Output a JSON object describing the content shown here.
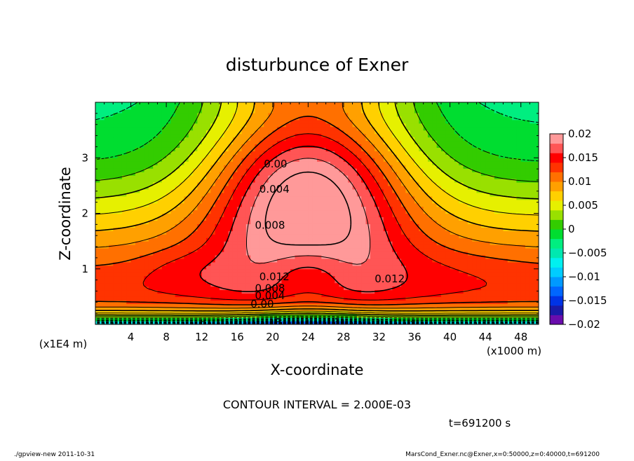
{
  "chart_data": {
    "type": "heatmap",
    "title": "disturbunce of Exner",
    "xlabel": "X-coordinate",
    "ylabel": "Z-coordinate",
    "x_unit": "(x1000 m)",
    "y_unit": "(x1E4 m)",
    "xlim": [
      0,
      50
    ],
    "ylim": [
      0,
      4
    ],
    "x_ticks": [
      4,
      8,
      12,
      16,
      20,
      24,
      28,
      32,
      36,
      40,
      44,
      48
    ],
    "y_ticks": [
      1,
      2,
      3
    ],
    "contour_interval_label": "CONTOUR INTERVAL = 2.000E-03",
    "time_label": "t=691200 s",
    "contour_labels": [
      {
        "text": "0.00",
        "x": 19.0,
        "z": 2.9
      },
      {
        "text": "0.004",
        "x": 18.5,
        "z": 2.45
      },
      {
        "text": "0.008",
        "x": 18.0,
        "z": 1.8
      },
      {
        "text": "0.012",
        "x": 18.5,
        "z": 0.87
      },
      {
        "text": "0.012",
        "x": 31.5,
        "z": 0.83
      },
      {
        "text": "0.008",
        "x": 18.0,
        "z": 0.66
      },
      {
        "text": "0.004",
        "x": 18.0,
        "z": 0.53
      },
      {
        "text": "0.00",
        "x": 17.5,
        "z": 0.38
      }
    ],
    "colorbar": {
      "min": -0.02,
      "max": 0.02,
      "interval": 0.0025,
      "tick_labels": [
        "0.02",
        "0.015",
        "0.01",
        "0.005",
        "0",
        "−0.005",
        "−0.01",
        "−0.015",
        "−0.02"
      ],
      "colors": [
        "#6a0dad",
        "#1a1aa8",
        "#0033e6",
        "#0066ff",
        "#0099ff",
        "#00ccff",
        "#00f0f0",
        "#00e8b0",
        "#00ee80",
        "#00dd30",
        "#33cc00",
        "#99e000",
        "#e6f000",
        "#ffd000",
        "#ffa000",
        "#ff7000",
        "#ff3300",
        "#ff0000",
        "#ff5555",
        "#ff9999"
      ]
    }
  },
  "footer": {
    "left": "./gpview-new   2011-10-31",
    "right": "MarsCond_Exner.nc@Exner,x=0:50000,z=0:40000,t=691200"
  }
}
